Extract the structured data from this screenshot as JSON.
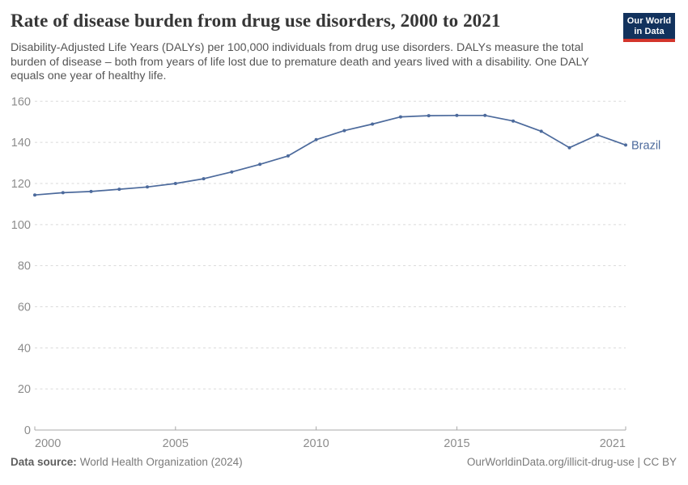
{
  "header": {
    "title": "Rate of disease burden from drug use disorders, 2000 to 2021",
    "subtitle": "Disability-Adjusted Life Years (DALYs) per 100,000 individuals from drug use disorders. DALYs measure the total burden of disease – both from years of life lost due to premature death and years lived with a disability. One DALY equals one year of healthy life.",
    "logo": {
      "line1": "Our World",
      "line2": "in Data",
      "bg_color": "#12325D",
      "bar_color": "#D3352B"
    }
  },
  "chart_data": {
    "type": "line",
    "title": "Rate of disease burden from drug use disorders, 2000 to 2021",
    "xlabel": "",
    "ylabel": "",
    "ylim": [
      0,
      160
    ],
    "yticks": [
      0,
      20,
      40,
      60,
      80,
      100,
      120,
      140,
      160
    ],
    "xticks": [
      2000,
      2005,
      2010,
      2015,
      2021
    ],
    "grid": "horizontal-dashed",
    "legend": "series-end-label",
    "x": [
      2000,
      2001,
      2002,
      2003,
      2004,
      2005,
      2006,
      2007,
      2008,
      2009,
      2010,
      2011,
      2012,
      2013,
      2014,
      2015,
      2016,
      2017,
      2018,
      2019,
      2020,
      2021
    ],
    "series": [
      {
        "name": "Brazil",
        "color": "#4C6A9C",
        "values": [
          114.4,
          115.5,
          116.1,
          117.2,
          118.3,
          120.0,
          122.3,
          125.6,
          129.3,
          133.4,
          141.3,
          145.7,
          148.9,
          152.4,
          153.0,
          153.1,
          153.1,
          150.4,
          145.4,
          137.4,
          143.6,
          138.7
        ]
      }
    ],
    "colors": {
      "gridline": "#dadada",
      "axis": "#a8a8a8",
      "tick_label": "#8c8c8c"
    }
  },
  "footer": {
    "source_label": "Data source:",
    "source_value": "World Health Organization (2024)",
    "credit": "OurWorldinData.org/illicit-drug-use | CC BY"
  }
}
